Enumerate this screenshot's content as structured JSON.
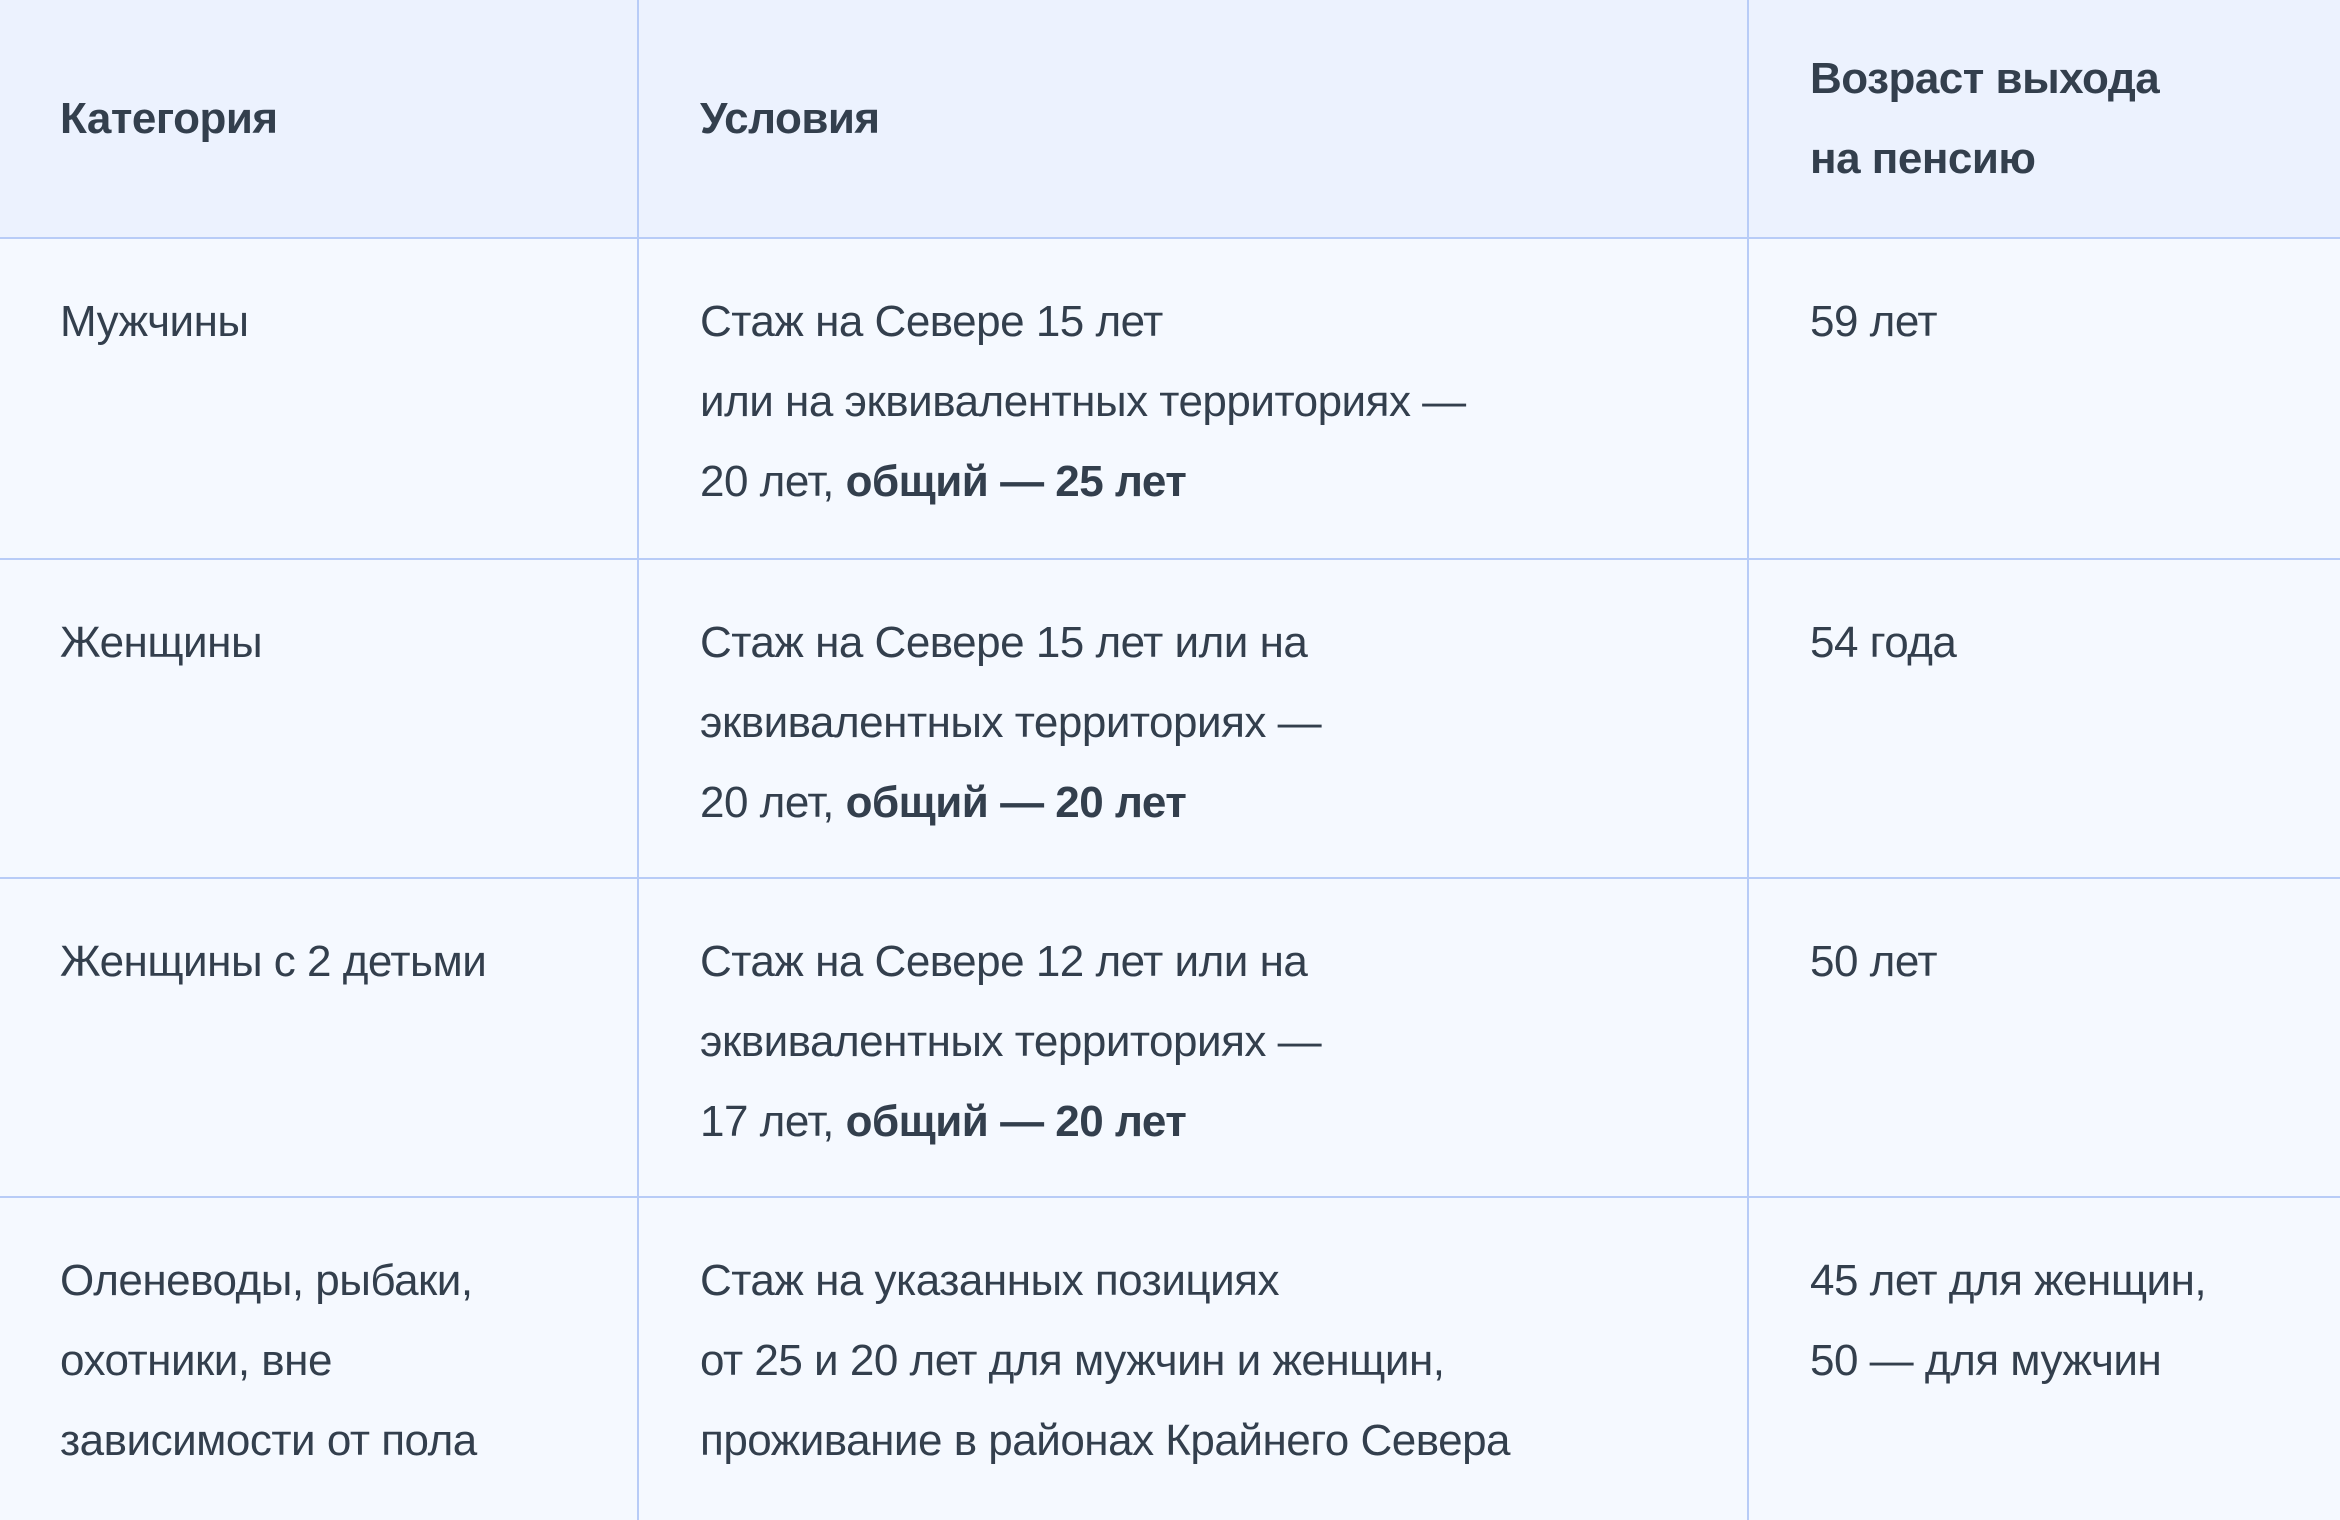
{
  "colors": {
    "header_bg": "#ecf2fe",
    "body_bg": "#f5f9ff",
    "border": "#b8ccf7",
    "text": "#333f4d"
  },
  "header": [
    {
      "lines": [
        [
          {
            "text": "Категория"
          }
        ]
      ]
    },
    {
      "lines": [
        [
          {
            "text": "Условия"
          }
        ]
      ]
    },
    {
      "lines": [
        [
          {
            "text": "Возраст выхода"
          }
        ],
        [
          {
            "text": "на пенсию"
          }
        ]
      ]
    }
  ],
  "rows": [
    [
      {
        "lines": [
          [
            {
              "text": "Мужчины"
            }
          ]
        ]
      },
      {
        "lines": [
          [
            {
              "text": "Стаж на Севере 15 лет"
            }
          ],
          [
            {
              "text": "или на эквивалентных территориях —"
            }
          ],
          [
            {
              "text": "20 лет, "
            },
            {
              "text": "общий — 25 лет",
              "bold": true
            }
          ]
        ]
      },
      {
        "lines": [
          [
            {
              "text": "59 лет"
            }
          ]
        ]
      }
    ],
    [
      {
        "lines": [
          [
            {
              "text": "Женщины"
            }
          ]
        ]
      },
      {
        "lines": [
          [
            {
              "text": "Стаж на Севере 15 лет или на"
            }
          ],
          [
            {
              "text": "эквивалентных территориях —"
            }
          ],
          [
            {
              "text": "20 лет, "
            },
            {
              "text": "общий — 20 лет",
              "bold": true
            }
          ]
        ]
      },
      {
        "lines": [
          [
            {
              "text": "54 года"
            }
          ]
        ]
      }
    ],
    [
      {
        "lines": [
          [
            {
              "text": "Женщины с 2 детьми"
            }
          ]
        ]
      },
      {
        "lines": [
          [
            {
              "text": "Стаж на Севере 12 лет или на"
            }
          ],
          [
            {
              "text": "эквивалентных территориях —"
            }
          ],
          [
            {
              "text": "17 лет, "
            },
            {
              "text": "общий — 20 лет",
              "bold": true
            }
          ]
        ]
      },
      {
        "lines": [
          [
            {
              "text": "50 лет"
            }
          ]
        ]
      }
    ],
    [
      {
        "lines": [
          [
            {
              "text": "Оленеводы, рыбаки,"
            }
          ],
          [
            {
              "text": "охотники, вне"
            }
          ],
          [
            {
              "text": "зависимости от пола"
            }
          ]
        ]
      },
      {
        "lines": [
          [
            {
              "text": "Стаж на указанных позициях"
            }
          ],
          [
            {
              "text": "от 25 и 20 лет для мужчин и женщин,"
            }
          ],
          [
            {
              "text": "проживание в районах Крайнего Севера"
            }
          ]
        ]
      },
      {
        "lines": [
          [
            {
              "text": "45 лет для женщин,"
            }
          ],
          [
            {
              "text": "50 — для мужчин"
            }
          ]
        ]
      }
    ]
  ]
}
